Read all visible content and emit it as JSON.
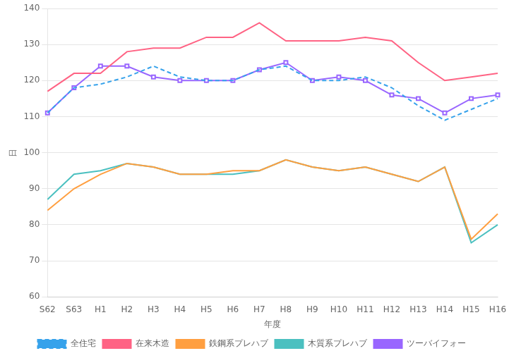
{
  "chart_data": {
    "type": "line",
    "x_label": "年度",
    "y_label": "日",
    "categories": [
      "S62",
      "S63",
      "H1",
      "H2",
      "H3",
      "H4",
      "H5",
      "H6",
      "H7",
      "H8",
      "H9",
      "H10",
      "H11",
      "H12",
      "H13",
      "H14",
      "H15",
      "H16"
    ],
    "series": [
      {
        "name": "全住宅",
        "line_style": "dashed",
        "values": [
          111,
          118,
          119,
          121,
          124,
          121,
          120,
          120,
          123,
          124,
          120,
          120,
          121,
          118,
          113,
          109,
          112,
          115
        ]
      },
      {
        "name": "在来木造",
        "line_style": "solid",
        "values": [
          117,
          122,
          122,
          128,
          129,
          129,
          132,
          132,
          136,
          131,
          131,
          131,
          132,
          131,
          125,
          120,
          121,
          122
        ]
      },
      {
        "name": "鉄鋼系プレハブ",
        "line_style": "solid",
        "values": [
          84,
          90,
          94,
          97,
          96,
          94,
          94,
          95,
          95,
          98,
          96,
          95,
          96,
          94,
          92,
          96,
          76,
          83
        ]
      },
      {
        "name": "木質系プレハブ",
        "line_style": "solid",
        "values": [
          87,
          94,
          95,
          97,
          96,
          94,
          94,
          94,
          95,
          98,
          96,
          95,
          96,
          94,
          92,
          96,
          75,
          80
        ]
      },
      {
        "name": "ツーバイフォー",
        "line_style": "solid",
        "marker": "square",
        "values": [
          111,
          118,
          124,
          124,
          121,
          120,
          120,
          120,
          123,
          125,
          120,
          121,
          120,
          116,
          115,
          111,
          115,
          116
        ]
      }
    ],
    "ylim": [
      60,
      140
    ],
    "yticks": [
      60,
      70,
      80,
      90,
      100,
      110,
      120,
      130,
      140
    ],
    "grid": true,
    "legend": "bottom"
  }
}
